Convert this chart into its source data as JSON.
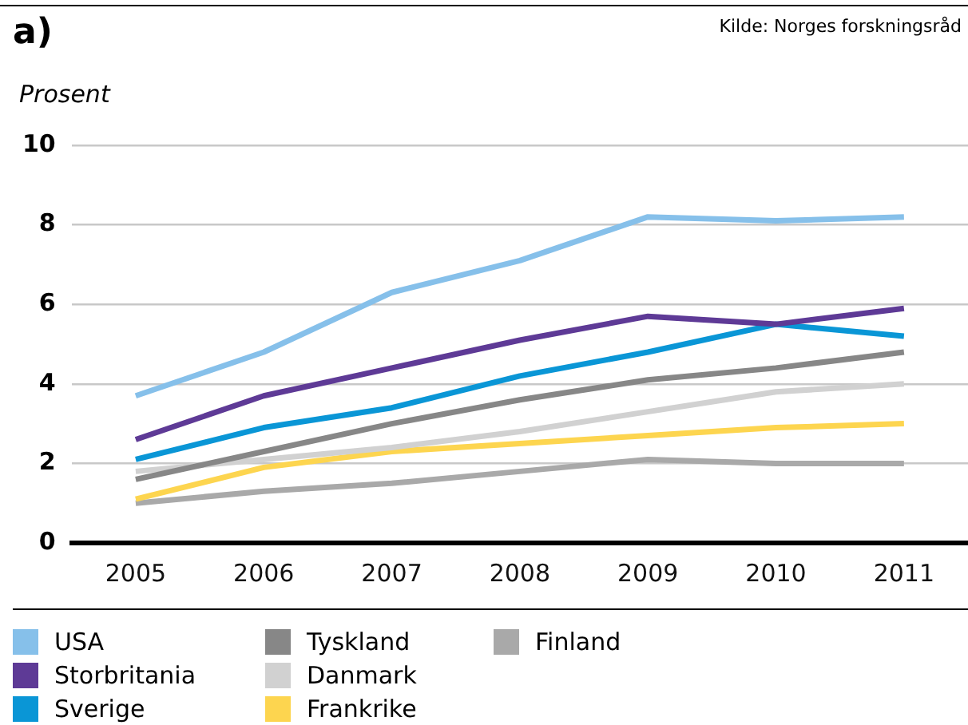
{
  "chart_data": {
    "type": "line",
    "title": "a)",
    "ylabel": "Prosent",
    "annotations": [
      "Kilde: Norges forskningsråd"
    ],
    "categories": [
      "2005",
      "2006",
      "2007",
      "2008",
      "2009",
      "2010",
      "2011"
    ],
    "series": [
      {
        "name": "USA",
        "color": "#86c0ea",
        "values": [
          3.7,
          4.8,
          6.3,
          7.1,
          8.2,
          8.1,
          8.2
        ]
      },
      {
        "name": "Storbritania",
        "color": "#5e3a96",
        "values": [
          2.6,
          3.7,
          4.4,
          5.1,
          5.7,
          5.5,
          5.9
        ]
      },
      {
        "name": "Sverige",
        "color": "#0a96d6",
        "values": [
          2.1,
          2.9,
          3.4,
          4.2,
          4.8,
          5.5,
          5.2
        ]
      },
      {
        "name": "Tyskland",
        "color": "#878787",
        "values": [
          1.6,
          2.3,
          3.0,
          3.6,
          4.1,
          4.4,
          4.8
        ]
      },
      {
        "name": "Danmark",
        "color": "#d1d1d1",
        "values": [
          1.8,
          2.1,
          2.4,
          2.8,
          3.3,
          3.8,
          4.0
        ]
      },
      {
        "name": "Frankrike",
        "color": "#fdd54f",
        "values": [
          1.1,
          1.9,
          2.3,
          2.5,
          2.7,
          2.9,
          3.0
        ]
      },
      {
        "name": "Finland",
        "color": "#a9a9a9",
        "values": [
          1.0,
          1.3,
          1.5,
          1.8,
          2.1,
          2.0,
          2.0
        ]
      }
    ],
    "ylim": [
      0,
      10
    ],
    "yticks": [
      0,
      2,
      4,
      6,
      8,
      10
    ],
    "grid": "y",
    "legend": "bottom",
    "marker": "none"
  }
}
